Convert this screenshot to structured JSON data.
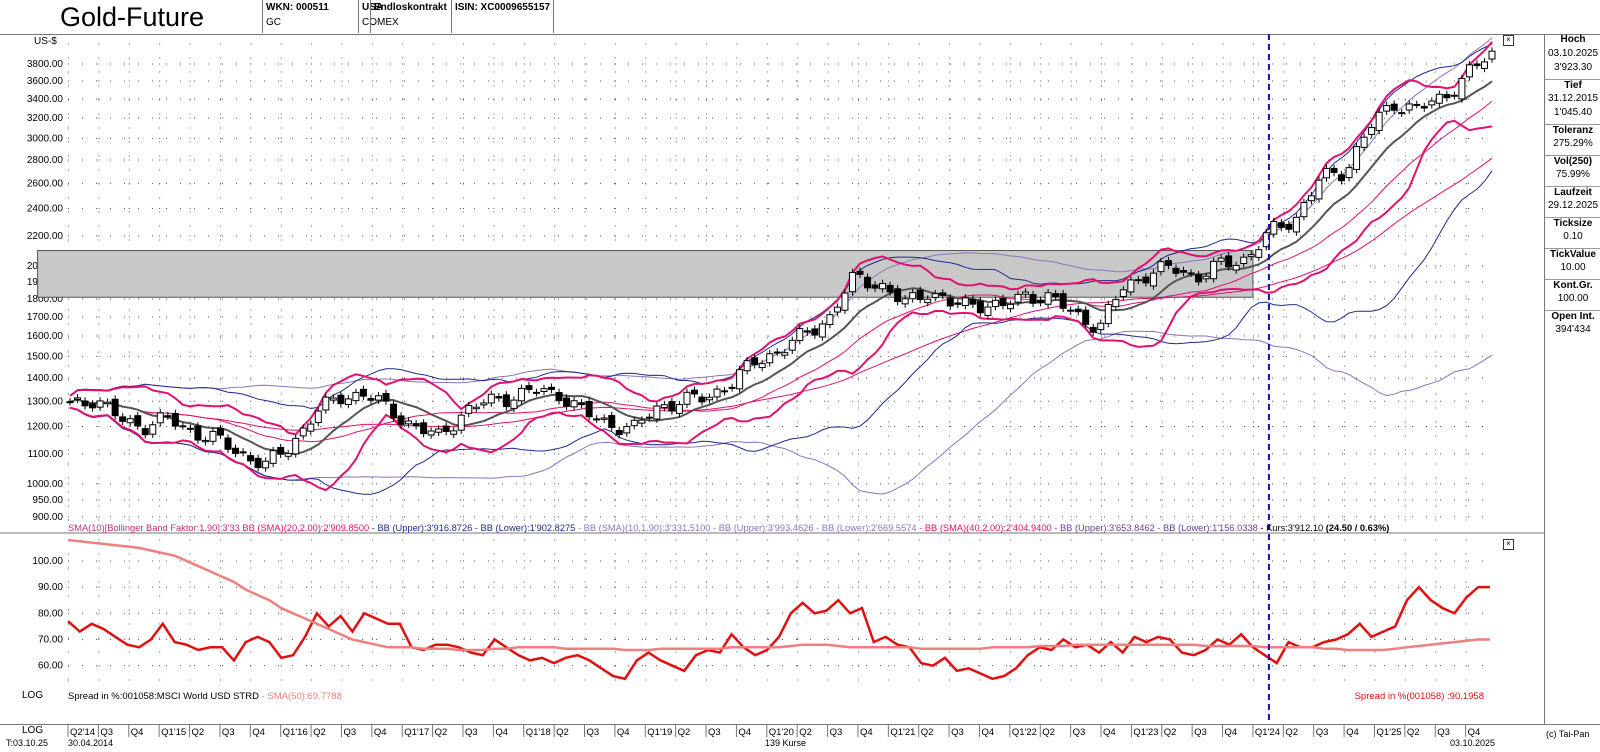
{
  "header": {
    "title": "Gold-Future",
    "wkn": "WKN: 000511",
    "symbol": "GC",
    "country": "USA",
    "exchange": "COMEX",
    "contract": "Endloskontrakt",
    "isin": "ISIN: XC0009655157"
  },
  "sidebar": [
    {
      "label": "Hoch",
      "lines": [
        "03.10.2025",
        "3'923.30"
      ]
    },
    {
      "label": "Tief",
      "lines": [
        "31.12.2015",
        "1'045.40"
      ]
    },
    {
      "label": "Toleranz",
      "lines": [
        "275.29%"
      ]
    },
    {
      "label": "Vol(250)",
      "lines": [
        "75.99%"
      ]
    },
    {
      "label": "Laufzeit",
      "lines": [
        "29.12.2025"
      ]
    },
    {
      "label": "Ticksize",
      "lines": [
        "0.10"
      ]
    },
    {
      "label": "TickValue",
      "lines": [
        "10.00"
      ]
    },
    {
      "label": "Kont.Gr.",
      "lines": [
        "100.00"
      ]
    },
    {
      "label": "Open Int.",
      "lines": [
        "394'434"
      ]
    }
  ],
  "footer": {
    "log_label_1": "LOG",
    "log_label_2": "LOG",
    "date_code": "T:03.10.25",
    "start_date": "30.04.2014",
    "count": "139 Kurse",
    "end_date": "03.10.2025",
    "copyright": "(c) Tai-Pan"
  },
  "colors": {
    "bb20": "#e0116f",
    "bb10": "#8c74bb",
    "bb40": "#1f2a8c",
    "spread": "#e01010",
    "spread_sma": "#f08080",
    "marker": "#1010c0",
    "highlight": "#c8c8c8"
  },
  "chart_data": [
    {
      "type": "candlestick",
      "unit_label": "US-$",
      "scale": "log",
      "y_ticks": [
        900,
        950,
        1000,
        1100,
        1200,
        1300,
        1400,
        1500,
        1600,
        1700,
        1800,
        1900,
        2000,
        2200,
        2400,
        2600,
        2800,
        3000,
        3200,
        3400,
        3600,
        3800
      ],
      "y_tick_labels": [
        "900.00",
        "950.00",
        "1000.00",
        "1100.00",
        "1200.00",
        "1300.00",
        "1400.00",
        "1500.00",
        "1600.00",
        "1700.00",
        "1800.00",
        "1900.00",
        "2000.00",
        "2200.00",
        "2400.00",
        "2600.00",
        "2800.00",
        "3000.00",
        "3200.00",
        "3400.00",
        "3600.00",
        "3800.00"
      ],
      "ylim": [
        880,
        4050
      ],
      "x_labels": [
        "Q2'14",
        "Q3",
        "Q4",
        "Q1'15",
        "Q2",
        "Q3",
        "Q4",
        "Q1'16",
        "Q2",
        "Q3",
        "Q4",
        "Q1'17",
        "Q2",
        "Q3",
        "Q4",
        "Q1'18",
        "Q2",
        "Q3",
        "Q4",
        "Q1'19",
        "Q2",
        "Q3",
        "Q4",
        "Q1'20",
        "Q2",
        "Q3",
        "Q4",
        "Q1'21",
        "Q2",
        "Q3",
        "Q4",
        "Q1'22",
        "Q2",
        "Q3",
        "Q4",
        "Q1'23",
        "Q2",
        "Q3",
        "Q4",
        "Q1'24",
        "Q2",
        "Q3",
        "Q4",
        "Q1'25",
        "Q2",
        "Q3",
        "Q4"
      ],
      "close_anchors": [
        1290,
        1310,
        1230,
        1200,
        1230,
        1180,
        1150,
        1100,
        1060,
        1130,
        1250,
        1320,
        1330,
        1270,
        1200,
        1160,
        1250,
        1300,
        1320,
        1345,
        1330,
        1250,
        1210,
        1190,
        1280,
        1300,
        1320,
        1380,
        1480,
        1530,
        1610,
        1700,
        1930,
        1890,
        1770,
        1850,
        1760,
        1780,
        1750,
        1830,
        1800,
        1720,
        1640,
        1880,
        1950,
        1990,
        1930,
        2010,
        2050,
        2230,
        2330,
        2640,
        2700,
        3100,
        3350,
        3300,
        3400,
        3700,
        3900
      ],
      "highlight_zone": {
        "x_from": "Q2'23",
        "x_to": "Q1'24",
        "low": 1810,
        "high": 2100
      },
      "marker_date": "Q1'24",
      "indicator_legend": [
        {
          "text": "SMA(10)[Bollinger Band Faktor:1.90]:3'33",
          "color": "#c0307a"
        },
        {
          "text": " BB (SMA)(20,2.00):2'909.8500",
          "color": "#e0116f"
        },
        {
          "text": " - BB (Upper):3'916.8726 - BB (Lower):1'902.8275",
          "color": "#1f2a8c"
        },
        {
          "text": " - BB (SMA)(10,1.90):3'331.5100 - BB (Upper):3'993.4626 - BB (Lower):2'669.5574",
          "color": "#8c74bb"
        },
        {
          "text": " - BB (SMA)(40,2.00):2'404.9400",
          "color": "#e0116f"
        },
        {
          "text": " - BB (Upper):3'653.8462 - BB (Lower):1'156.0338",
          "color": "#6a3d9a"
        },
        {
          "text": " - Kurs:3'912.10 ",
          "color": "#000000"
        },
        {
          "text": "(24.50 / 0.63%)",
          "color": "#000000",
          "bold": true
        }
      ]
    },
    {
      "type": "line",
      "y_ticks": [
        60,
        70,
        80,
        90,
        100
      ],
      "y_tick_labels": [
        "60.00",
        "70.00",
        "80.00",
        "90.00",
        "100.00"
      ],
      "ylim": [
        53,
        108
      ],
      "series": [
        {
          "name": "Spread in %:001058:MSCI World USD STRD",
          "values": [
            77,
            73,
            76,
            74,
            71,
            68,
            67,
            70,
            76,
            69,
            68,
            66,
            67,
            67,
            62,
            69,
            71,
            69,
            63,
            64,
            71,
            80,
            75,
            79,
            73,
            80,
            78,
            76,
            76,
            67,
            66,
            68,
            68,
            67,
            65,
            64,
            70,
            67,
            64,
            62,
            63,
            61,
            63,
            64,
            62,
            59,
            56,
            55,
            62,
            65,
            62,
            60,
            58,
            64,
            66,
            65,
            72,
            67,
            64,
            66,
            71,
            80,
            84,
            80,
            81,
            85,
            80,
            82,
            69,
            71,
            68,
            67,
            61,
            60,
            63,
            58,
            59,
            57,
            55,
            56,
            59,
            64,
            67,
            66,
            70,
            67,
            68,
            65,
            69,
            65,
            71,
            69,
            71,
            70,
            65,
            64,
            66,
            70,
            68,
            72,
            67,
            64,
            61,
            69,
            67,
            67,
            69,
            70,
            72,
            76,
            71,
            73,
            75,
            85,
            90,
            85,
            82,
            80,
            86,
            90,
            90
          ]
        },
        {
          "name": "SMA(50):69.7788",
          "values": [
            108,
            107.5,
            107,
            106.5,
            106,
            105.5,
            105,
            104,
            103,
            102,
            100,
            98,
            96,
            94,
            92,
            89,
            87,
            85,
            82,
            80,
            78,
            76,
            74,
            72,
            70,
            69,
            68,
            67,
            67,
            67,
            66.5,
            66.5,
            66.5,
            66,
            66,
            66,
            66.5,
            66.5,
            67,
            67,
            67,
            67,
            66.5,
            66.5,
            66.5,
            66.5,
            66.5,
            66,
            66,
            66,
            66.5,
            66.5,
            66.5,
            66.5,
            66.5,
            66.5,
            67,
            67,
            67,
            67,
            67,
            67.5,
            68,
            68,
            68,
            67.5,
            67,
            67,
            67,
            67,
            67,
            67,
            66.5,
            66.5,
            66.5,
            66.5,
            66.5,
            66.5,
            67,
            67,
            67,
            67,
            67.5,
            67.5,
            67.5,
            68,
            68,
            68,
            68,
            68,
            68,
            68,
            68,
            68,
            68,
            68,
            67.5,
            67.5,
            67.5,
            67.5,
            67.5,
            67,
            67,
            67,
            67,
            67,
            66.5,
            66.5,
            66,
            66,
            66,
            66,
            66.5,
            67,
            67.5,
            68,
            68.5,
            69,
            69.5,
            70,
            70
          ]
        }
      ],
      "legend_left": "Spread in %:001058:MSCI World USD STRD",
      "legend_left_sma": " - SMA(50):69.7788",
      "legend_right": "Spread in %(001058) :90.1958"
    }
  ]
}
